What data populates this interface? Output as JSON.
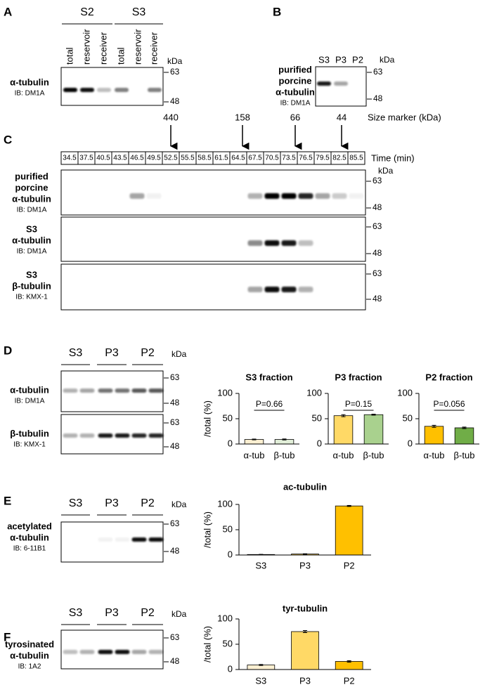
{
  "panel_A": {
    "letter": "A",
    "groups": [
      "S2",
      "S3"
    ],
    "lanes": [
      "total",
      "reservoir",
      "receiver",
      "total",
      "reservoir",
      "receiver"
    ],
    "unit": "kDa",
    "markers": [
      63,
      48
    ],
    "protein": [
      "α-tubulin"
    ],
    "ib": "IB: DM1A"
  },
  "panel_B": {
    "letter": "B",
    "lanes": [
      "S3",
      "P3",
      "P2"
    ],
    "unit": "kDa",
    "markers": [
      63,
      48
    ],
    "protein": [
      "purified",
      "porcine",
      "α-tubulin"
    ],
    "ib": "IB: DM1A"
  },
  "panel_C": {
    "letter": "C",
    "size_marker_title": "Size marker (kDa)",
    "size_markers": [
      "440",
      "158",
      "66",
      "44"
    ],
    "time_title": "Time (min)",
    "times": [
      34.5,
      37.5,
      40.5,
      43.5,
      46.5,
      49.5,
      52.5,
      55.5,
      58.5,
      61.5,
      64.5,
      67.5,
      70.5,
      73.5,
      76.5,
      79.5,
      82.5,
      85.5
    ],
    "unit": "kDa",
    "rows": [
      {
        "protein": [
          "purified",
          "porcine",
          "α-tubulin"
        ],
        "ib": "IB: DM1A",
        "markers": [
          63,
          48
        ]
      },
      {
        "protein": [
          "S3",
          "α-tubulin"
        ],
        "ib": "IB: DM1A",
        "markers": [
          63,
          48
        ]
      },
      {
        "protein": [
          "S3",
          "β-tubulin"
        ],
        "ib": "IB: KMX-1",
        "markers": [
          63,
          48
        ]
      }
    ]
  },
  "panel_D": {
    "letter": "D",
    "groups": [
      "S3",
      "P3",
      "P2"
    ],
    "unit": "kDa",
    "rows": [
      {
        "protein": [
          "α-tubulin"
        ],
        "ib": "IB: DM1A",
        "markers": [
          63,
          48
        ]
      },
      {
        "protein": [
          "β-tubulin"
        ],
        "ib": "IB: KMX-1",
        "markers": [
          63,
          48
        ]
      }
    ]
  },
  "panel_E": {
    "letter": "E",
    "groups": [
      "S3",
      "P3",
      "P2"
    ],
    "unit": "kDa",
    "rows": [
      {
        "protein": [
          "acetylated",
          "α-tubulin"
        ],
        "ib": "IB: 6-11B1",
        "markers": [
          63,
          48
        ]
      }
    ]
  },
  "panel_F": {
    "letter": "F",
    "groups": [
      "S3",
      "P3",
      "P2"
    ],
    "unit": "kDa",
    "rows": [
      {
        "protein": [
          "tyrosinated",
          "α-tubulin"
        ],
        "ib": "IB: 1A2",
        "markers": [
          63,
          48
        ]
      }
    ]
  },
  "chart_data": [
    {
      "type": "bar",
      "title": "S3 fraction",
      "ylabel": "/total (%)",
      "categories": [
        "α-tub",
        "β-tub"
      ],
      "values": [
        9,
        9
      ],
      "errors": [
        0.8,
        1
      ],
      "colors": [
        "#fdf0d2",
        "#e2efd9"
      ],
      "ylim": [
        0,
        100
      ],
      "yticks": [
        0,
        50,
        100
      ],
      "annotation": "P=0.66"
    },
    {
      "type": "bar",
      "title": "P3 fraction",
      "categories": [
        "α-tub",
        "β-tub"
      ],
      "values": [
        56,
        58
      ],
      "errors": [
        2,
        1
      ],
      "colors": [
        "#ffd966",
        "#a9d18e"
      ],
      "ylim": [
        0,
        100
      ],
      "yticks": [
        0,
        50,
        100
      ],
      "annotation": "P=0.15"
    },
    {
      "type": "bar",
      "title": "P2 fraction",
      "categories": [
        "α-tub",
        "β-tub"
      ],
      "values": [
        35,
        32
      ],
      "errors": [
        2,
        1.5
      ],
      "colors": [
        "#ffc000",
        "#70ad47"
      ],
      "ylim": [
        0,
        100
      ],
      "yticks": [
        0,
        50,
        100
      ],
      "annotation": "P=0.056"
    },
    {
      "type": "bar",
      "title": "ac-tubulin",
      "ylabel": "/total (%)",
      "categories": [
        "S3",
        "P3",
        "P2"
      ],
      "values": [
        1,
        2,
        97
      ],
      "errors": [
        0.3,
        0.5,
        1
      ],
      "colors": [
        "#fdf0d2",
        "#ffd966",
        "#ffc000"
      ],
      "ylim": [
        0,
        100
      ],
      "yticks": [
        0,
        50,
        100
      ]
    },
    {
      "type": "bar",
      "title": "tyr-tubulin",
      "ylabel": "/total (%)",
      "categories": [
        "S3",
        "P3",
        "P2"
      ],
      "values": [
        9,
        75,
        16
      ],
      "errors": [
        1,
        2,
        1.5
      ],
      "colors": [
        "#fdf0d2",
        "#ffd966",
        "#ffc000"
      ],
      "ylim": [
        0,
        100
      ],
      "yticks": [
        0,
        50,
        100
      ]
    }
  ]
}
